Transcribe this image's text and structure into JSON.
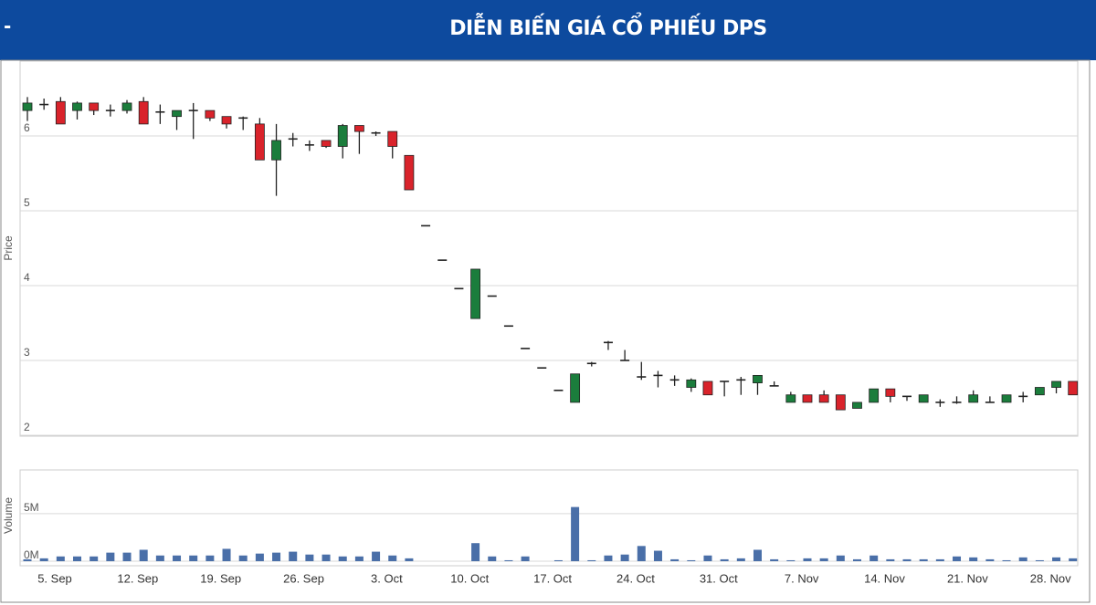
{
  "header_prefix": "-",
  "chart_data": [
    {
      "type": "candlestick",
      "title": "DIỄN BIẾN GIÁ CỔ PHIẾU DPS",
      "y_label": "Price",
      "up_color": "#1b7d3c",
      "down_color": "#d9232b",
      "categories": [
        "5. Sep",
        null,
        null,
        null,
        null,
        "12. Sep",
        null,
        null,
        null,
        null,
        "19. Sep",
        null,
        null,
        null,
        null,
        "26. Sep",
        null,
        null,
        null,
        null,
        "3. Oct",
        null,
        null,
        null,
        null,
        "10. Oct",
        null,
        null,
        null,
        null,
        "17. Oct",
        null,
        null,
        null,
        null,
        "24. Oct",
        null,
        null,
        null,
        null,
        "31. Oct",
        null,
        null,
        null,
        null,
        "7. Nov",
        null,
        null,
        null,
        null,
        "14. Nov",
        null,
        null,
        null,
        null,
        "21. Nov",
        null,
        null,
        null,
        null,
        "28. Nov",
        null,
        null,
        null
      ],
      "open": [
        6.34,
        6.42,
        6.46,
        6.34,
        6.44,
        6.34,
        6.34,
        6.46,
        6.32,
        6.26,
        6.34,
        6.34,
        6.26,
        6.24,
        6.16,
        5.68,
        5.96,
        5.88,
        5.94,
        5.86,
        6.14,
        6.04,
        6.06,
        5.74,
        4.8,
        4.34,
        3.96,
        3.56,
        3.86,
        3.46,
        3.16,
        2.9,
        2.6,
        2.44,
        2.96,
        3.24,
        3.0,
        2.78,
        2.8,
        2.74,
        2.64,
        2.72,
        2.72,
        2.74,
        2.7,
        2.66,
        2.44,
        2.54,
        2.54,
        2.54,
        2.36,
        2.44,
        2.62,
        2.52,
        2.44,
        2.44,
        2.44,
        2.44,
        2.44,
        2.44,
        2.52,
        2.54,
        2.64,
        2.72
      ],
      "high": [
        6.52,
        6.5,
        6.52,
        6.46,
        6.44,
        6.42,
        6.48,
        6.52,
        6.42,
        6.34,
        6.44,
        6.34,
        6.26,
        6.26,
        6.24,
        6.16,
        6.04,
        5.94,
        5.94,
        6.16,
        6.14,
        6.06,
        6.06,
        5.74,
        4.8,
        4.34,
        3.96,
        4.22,
        3.86,
        3.46,
        3.16,
        2.9,
        2.6,
        2.82,
        2.98,
        3.26,
        3.14,
        2.98,
        2.86,
        2.8,
        2.76,
        2.72,
        2.72,
        2.78,
        2.8,
        2.72,
        2.58,
        2.54,
        2.6,
        2.54,
        2.44,
        2.62,
        2.62,
        2.52,
        2.54,
        2.48,
        2.52,
        2.6,
        2.52,
        2.54,
        2.58,
        2.64,
        2.72,
        2.72
      ],
      "low": [
        6.2,
        6.35,
        6.16,
        6.22,
        6.28,
        6.26,
        6.3,
        6.16,
        6.16,
        6.08,
        5.96,
        6.2,
        6.1,
        6.08,
        5.68,
        5.2,
        5.86,
        5.8,
        5.84,
        5.7,
        5.76,
        6.0,
        5.7,
        5.28,
        4.8,
        4.34,
        3.96,
        3.56,
        3.86,
        3.46,
        3.16,
        2.9,
        2.6,
        2.44,
        2.92,
        3.14,
        3.0,
        2.74,
        2.64,
        2.66,
        2.58,
        2.54,
        2.52,
        2.54,
        2.54,
        2.66,
        2.44,
        2.44,
        2.44,
        2.34,
        2.36,
        2.44,
        2.44,
        2.46,
        2.44,
        2.38,
        2.42,
        2.44,
        2.44,
        2.44,
        2.44,
        2.54,
        2.56,
        2.54
      ],
      "close": [
        6.44,
        6.42,
        6.16,
        6.44,
        6.34,
        6.34,
        6.44,
        6.16,
        6.32,
        6.34,
        6.34,
        6.24,
        6.16,
        6.24,
        5.68,
        5.94,
        5.96,
        5.88,
        5.86,
        6.14,
        6.06,
        6.04,
        5.86,
        5.28,
        4.8,
        4.34,
        3.96,
        4.22,
        3.86,
        3.46,
        3.16,
        2.9,
        2.6,
        2.82,
        2.96,
        3.24,
        3.0,
        2.78,
        2.8,
        2.74,
        2.74,
        2.54,
        2.72,
        2.74,
        2.8,
        2.66,
        2.54,
        2.44,
        2.44,
        2.34,
        2.44,
        2.62,
        2.52,
        2.52,
        2.54,
        2.44,
        2.44,
        2.54,
        2.44,
        2.54,
        2.52,
        2.64,
        2.72,
        2.54
      ],
      "ylim": [
        2,
        7
      ],
      "yticks": [
        2,
        3,
        4,
        5,
        6
      ],
      "grid": true
    },
    {
      "type": "bar",
      "y_label": "Volume",
      "color": "#4a6fa8",
      "values": [
        200000,
        300000,
        500000,
        500000,
        500000,
        900000,
        900000,
        1200000,
        600000,
        600000,
        600000,
        600000,
        1300000,
        600000,
        800000,
        900000,
        1000000,
        700000,
        700000,
        500000,
        500000,
        1000000,
        600000,
        300000,
        0,
        0,
        0,
        1900000,
        500000,
        100000,
        500000,
        0,
        100000,
        5700000,
        100000,
        600000,
        700000,
        1600000,
        1100000,
        200000,
        100000,
        600000,
        200000,
        300000,
        1200000,
        200000,
        100000,
        300000,
        300000,
        600000,
        200000,
        600000,
        200000,
        200000,
        200000,
        200000,
        500000,
        400000,
        200000,
        100000,
        400000,
        100000,
        400000,
        300000
      ],
      "ylim": [
        0,
        9600000
      ],
      "yticks": [
        {
          "value": 0,
          "label": "0M"
        },
        {
          "value": 5000000,
          "label": "5M"
        }
      ],
      "grid": true
    }
  ]
}
